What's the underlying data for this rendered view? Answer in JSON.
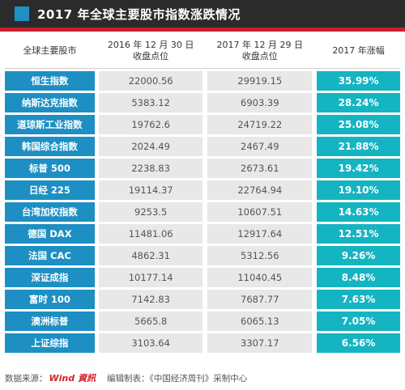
{
  "title": "2017 年全球主要股市指数涨跌情况",
  "colors": {
    "title_bg": "#2b2b2b",
    "title_marker": "#1f8fc4",
    "red_rule": "#c61f2d",
    "name_cell": "#1d8fc3",
    "value_cell": "#e8e8e8",
    "pct_cell": "#15b4c2"
  },
  "headers": {
    "col1": "全球主要股市",
    "col2_line1": "2016 年 12 月 30 日",
    "col2_line2": "收盘点位",
    "col3_line1": "2017 年 12 月 29 日",
    "col3_line2": "收盘点位",
    "col4": "2017 年涨幅"
  },
  "rows": [
    {
      "name": "恒生指数",
      "v2016": "22000.56",
      "v2017": "29919.15",
      "change": "35.99%"
    },
    {
      "name": "纳斯达克指数",
      "v2016": "5383.12",
      "v2017": "6903.39",
      "change": "28.24%"
    },
    {
      "name": "道琼斯工业指数",
      "v2016": "19762.6",
      "v2017": "24719.22",
      "change": "25.08%"
    },
    {
      "name": "韩国综合指数",
      "v2016": "2024.49",
      "v2017": "2467.49",
      "change": "21.88%"
    },
    {
      "name": "标普 500",
      "v2016": "2238.83",
      "v2017": "2673.61",
      "change": "19.42%"
    },
    {
      "name": "日经 225",
      "v2016": "19114.37",
      "v2017": "22764.94",
      "change": "19.10%"
    },
    {
      "name": "台湾加权指数",
      "v2016": "9253.5",
      "v2017": "10607.51",
      "change": "14.63%"
    },
    {
      "name": "德国 DAX",
      "v2016": "11481.06",
      "v2017": "12917.64",
      "change": "12.51%"
    },
    {
      "name": "法国 CAC",
      "v2016": "4862.31",
      "v2017": "5312.56",
      "change": "9.26%"
    },
    {
      "name": "深证成指",
      "v2016": "10177.14",
      "v2017": "11040.45",
      "change": "8.48%"
    },
    {
      "name": "富时 100",
      "v2016": "7142.83",
      "v2017": "7687.77",
      "change": "7.63%"
    },
    {
      "name": "澳洲标普",
      "v2016": "5665.8",
      "v2017": "6065.13",
      "change": "7.05%"
    },
    {
      "name": "上证综指",
      "v2016": "3103.64",
      "v2017": "3307.17",
      "change": "6.56%"
    }
  ],
  "footer": {
    "source_prefix": "数据来源：",
    "source_logo": "Wind 資訊",
    "credit": "编辑制表：《中国经济周刊》采制中心"
  }
}
